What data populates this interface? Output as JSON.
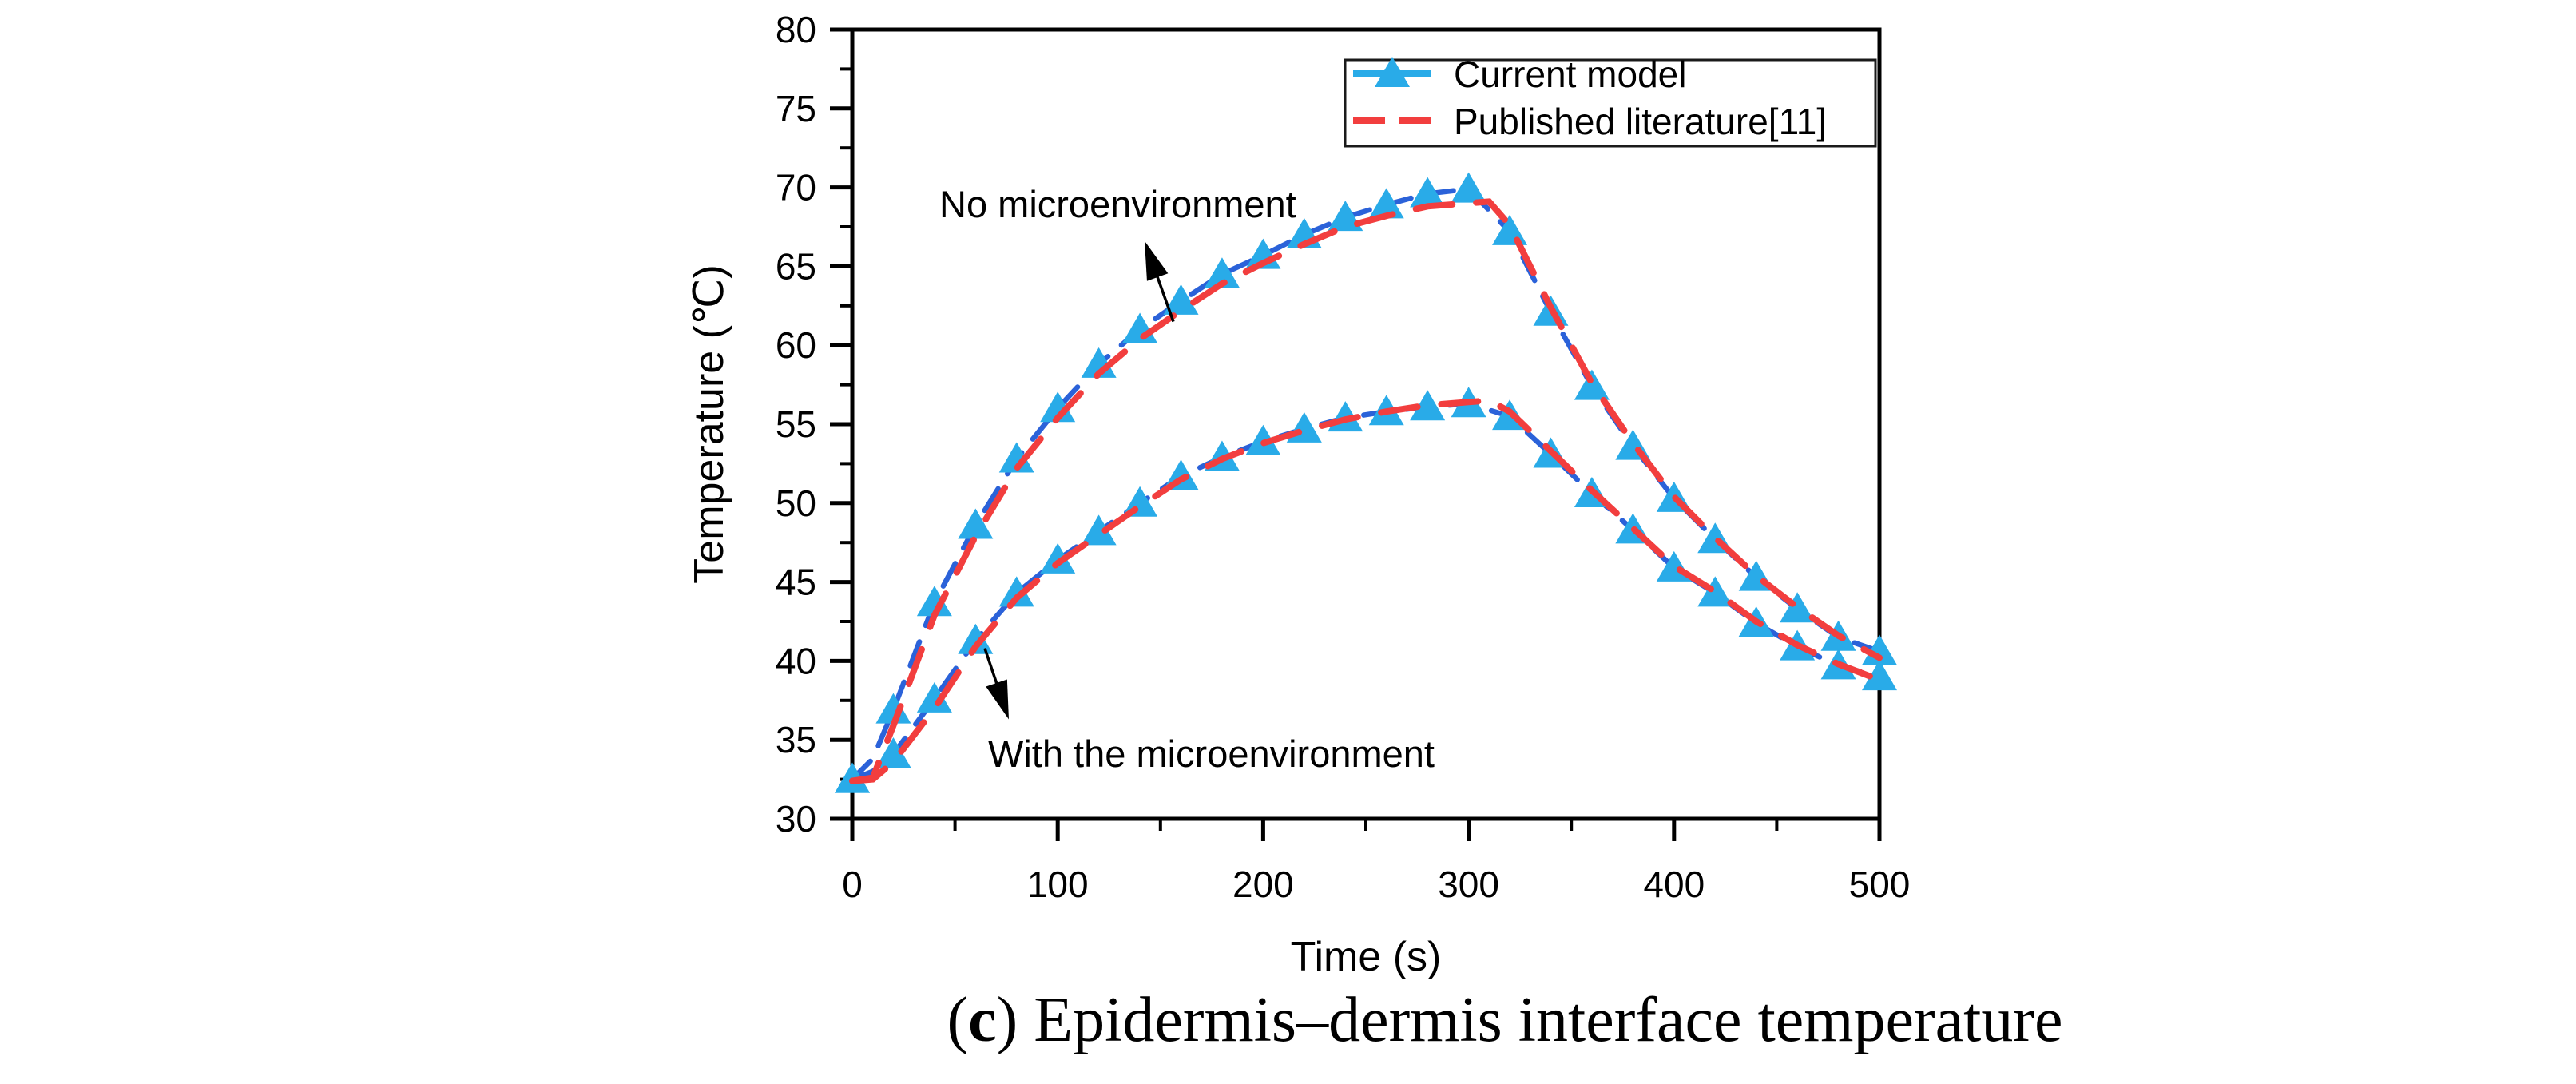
{
  "figure": {
    "background": "#ffffff",
    "frame_color": "#000000",
    "text_color": "#000000"
  },
  "caption": {
    "prefix": "(",
    "bold_part": "c",
    "suffix": ") Epidermis–dermis interface temperature"
  },
  "chart_data": {
    "type": "line",
    "title": "",
    "xlabel": "Time (s)",
    "ylabel": "Temperature (℃)",
    "xlim": [
      0,
      500
    ],
    "ylim": [
      30,
      80
    ],
    "grid": false,
    "x_major_ticks": [
      0,
      100,
      200,
      300,
      400,
      500
    ],
    "x_minor_ticks": [
      50,
      150,
      250,
      350,
      450
    ],
    "y_major_ticks": [
      30,
      35,
      40,
      45,
      50,
      55,
      60,
      65,
      70,
      75,
      80
    ],
    "y_minor_ticks": [
      32.5,
      37.5,
      42.5,
      47.5,
      52.5,
      57.5,
      62.5,
      67.5,
      72.5,
      77.5
    ],
    "legend": {
      "position": "top-right",
      "items": [
        {
          "label": "Current model",
          "line_color": "#29ABE8",
          "dashed": true,
          "marker": "triangle",
          "marker_color": "#29ABE8"
        },
        {
          "label": "Published literature[11]",
          "line_color": "#F23E3E",
          "dashed": true,
          "marker": null
        }
      ]
    },
    "series": [
      {
        "name": "No microenvironment - Current model",
        "legend": "Current model",
        "color": "#2B62D9",
        "marker": "triangle",
        "marker_color": "#29ABE8",
        "dash": [
          32,
          22
        ],
        "width": 6.5,
        "x": [
          0,
          10,
          20,
          40,
          60,
          80,
          100,
          120,
          140,
          160,
          180,
          200,
          220,
          240,
          260,
          280,
          300,
          320,
          340,
          360,
          380,
          400,
          420,
          440,
          460,
          480,
          500
        ],
        "y": [
          32.5,
          33.8,
          36.9,
          43.7,
          48.6,
          52.8,
          56.0,
          58.8,
          61.0,
          62.8,
          64.5,
          65.7,
          67.0,
          68.1,
          68.9,
          69.6,
          69.9,
          67.2,
          62.1,
          57.4,
          53.6,
          50.3,
          47.7,
          45.3,
          43.3,
          41.5,
          40.6
        ]
      },
      {
        "name": "With the microenvironment - Current model",
        "legend": "Current model",
        "color": "#2B62D9",
        "marker": "triangle",
        "marker_color": "#29ABE8",
        "dash": [
          32,
          22
        ],
        "width": 6.5,
        "x": [
          0,
          10,
          20,
          40,
          60,
          80,
          100,
          120,
          140,
          160,
          180,
          200,
          220,
          240,
          260,
          280,
          300,
          320,
          340,
          360,
          380,
          400,
          420,
          440,
          460,
          480,
          500
        ],
        "y": [
          32.5,
          33.0,
          34.1,
          37.6,
          41.3,
          44.3,
          46.4,
          48.2,
          50.0,
          51.7,
          52.9,
          53.9,
          54.7,
          55.4,
          55.8,
          56.1,
          56.3,
          55.5,
          53.1,
          50.6,
          48.3,
          45.9,
          44.3,
          42.4,
          40.9,
          39.7,
          39.0
        ]
      },
      {
        "name": "No microenvironment - Published literature",
        "legend": "Published literature[11]",
        "color": "#F23E3E",
        "marker": null,
        "dash": [
          46,
          30
        ],
        "width": 8,
        "x": [
          0,
          10,
          20,
          40,
          60,
          80,
          100,
          120,
          140,
          160,
          180,
          200,
          220,
          240,
          260,
          280,
          300,
          310,
          320,
          340,
          360,
          380,
          400,
          420,
          440,
          460,
          480,
          500
        ],
        "y": [
          32.4,
          32.6,
          35.9,
          42.9,
          47.9,
          52.2,
          55.4,
          58.2,
          60.4,
          62.2,
          63.9,
          65.2,
          66.4,
          67.5,
          68.2,
          68.8,
          69.0,
          69.1,
          67.6,
          62.4,
          57.6,
          53.8,
          50.4,
          47.8,
          45.4,
          43.4,
          41.6,
          40.2
        ]
      },
      {
        "name": "With the microenvironment - Published literature",
        "legend": "Published literature[11]",
        "color": "#F23E3E",
        "marker": null,
        "dash": [
          46,
          30
        ],
        "width": 8,
        "x": [
          0,
          10,
          20,
          40,
          60,
          80,
          100,
          120,
          140,
          160,
          180,
          200,
          220,
          240,
          260,
          280,
          300,
          310,
          320,
          340,
          360,
          380,
          400,
          420,
          440,
          460,
          480,
          500
        ],
        "y": [
          32.4,
          32.5,
          33.6,
          37.0,
          40.9,
          44.0,
          46.2,
          48.0,
          49.8,
          51.5,
          52.8,
          53.8,
          54.6,
          55.3,
          55.8,
          56.2,
          56.4,
          56.5,
          55.8,
          53.3,
          50.8,
          48.4,
          46.0,
          44.4,
          42.5,
          41.0,
          39.8,
          38.8
        ]
      }
    ],
    "annotations": [
      {
        "text": "No microenvironment",
        "text_pos": [
          42.4,
          68.1
        ],
        "arrow_from": [
          156.3,
          61.5
        ],
        "arrow_to": [
          142.3,
          66.6
        ]
      },
      {
        "text": "With the microenvironment",
        "text_pos": [
          66.1,
          33.3
        ],
        "arrow_from": [
          64.5,
          40.8
        ],
        "arrow_to": [
          76.2,
          36.3
        ]
      }
    ]
  }
}
